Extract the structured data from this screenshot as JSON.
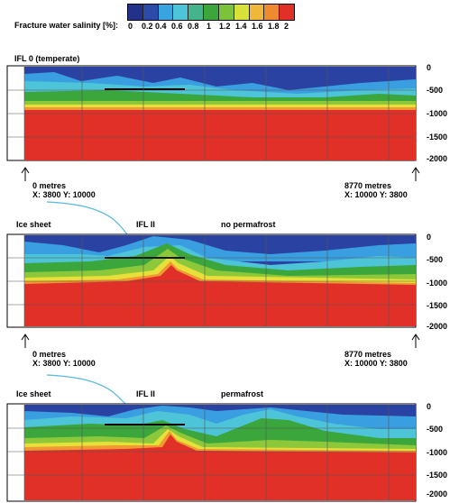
{
  "legend": {
    "title": "Fracture water salinity [%]:",
    "colors": [
      "#22318a",
      "#2c4aa8",
      "#3aa4e0",
      "#4ec4d8",
      "#44b48c",
      "#3aa63c",
      "#7cc23a",
      "#d8e03a",
      "#f0b83a",
      "#ee8a30",
      "#e03028"
    ],
    "labels": [
      "0",
      "0.2",
      "0.4",
      "0.6",
      "0.8",
      "1",
      "1.2",
      "1.4",
      "1.6",
      "1.8",
      "2"
    ]
  },
  "depth_ticks": [
    "0",
    "-500",
    "-1000",
    "-1500",
    "-2000"
  ],
  "panels": [
    {
      "id": "top",
      "title": "IFL 0 (temperate)",
      "left_marker": {
        "distance": "0 metres",
        "coords": "X: 3800 Y: 10000"
      },
      "right_marker": {
        "distance": "8770 metres",
        "coords": "X: 10000 Y: 3800"
      }
    },
    {
      "id": "middle",
      "ice_label": "Ice sheet",
      "ifl_label": "IFL II",
      "condition_label": "no permafrost",
      "left_marker": {
        "distance": "0 metres",
        "coords": "X: 3800 Y: 10000"
      },
      "right_marker": {
        "distance": "8770 metres",
        "coords": "X: 10000 Y: 3800"
      }
    },
    {
      "id": "bottom",
      "ice_label": "Ice sheet",
      "ifl_label": "IFL II",
      "condition_label": "permafrost"
    }
  ],
  "colors": {
    "deep_blue": "#2a43a2",
    "mid_blue": "#3a9fe0",
    "cyan": "#4ec4d8",
    "green": "#3aa63c",
    "lime": "#8cc83a",
    "yellow": "#e8e03a",
    "orange": "#ef9a32",
    "red": "#e03028",
    "ice": "#5ab8e0"
  }
}
